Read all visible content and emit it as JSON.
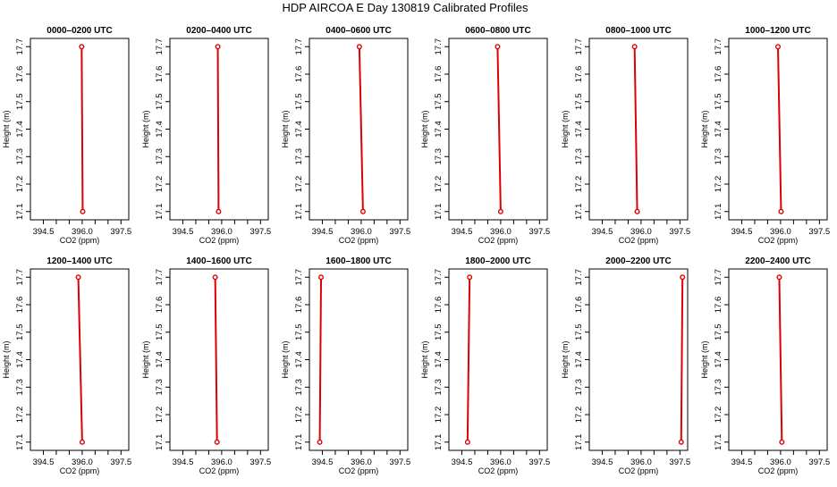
{
  "title": "HDP AIRCOA E  Day 130819  Calibrated Profiles",
  "colors": {
    "line": "#dd0000",
    "axis": "#000000",
    "background": "#ffffff"
  },
  "chart_data": {
    "type": "line",
    "xlabel": "CO2 (ppm)",
    "ylabel": "Height (m)",
    "xlim": [
      394.0,
      397.8
    ],
    "ylim": [
      17.07,
      17.73
    ],
    "xticks": [
      "394.5",
      "396.0",
      "397.5"
    ],
    "xtick_values": [
      394.5,
      396.0,
      397.5
    ],
    "yticks": [
      "17.1",
      "17.2",
      "17.3",
      "17.4",
      "17.5",
      "17.6",
      "17.7"
    ],
    "ytick_values": [
      17.1,
      17.2,
      17.3,
      17.4,
      17.5,
      17.6,
      17.7
    ],
    "minor_xtick_values": [
      395.0,
      395.5,
      396.5,
      397.0
    ],
    "panels": [
      {
        "title": "0000–0200 UTC",
        "x": [
          395.98,
          396.02
        ],
        "y": [
          17.7,
          17.1
        ]
      },
      {
        "title": "0200–0400 UTC",
        "x": [
          395.85,
          395.88
        ],
        "y": [
          17.7,
          17.1
        ]
      },
      {
        "title": "0400–0600 UTC",
        "x": [
          395.93,
          396.07
        ],
        "y": [
          17.7,
          17.1
        ]
      },
      {
        "title": "0600–0800 UTC",
        "x": [
          395.88,
          396.0
        ],
        "y": [
          17.7,
          17.1
        ]
      },
      {
        "title": "0800–1000 UTC",
        "x": [
          395.75,
          395.85
        ],
        "y": [
          17.7,
          17.1
        ]
      },
      {
        "title": "1000–1200 UTC",
        "x": [
          395.9,
          396.02
        ],
        "y": [
          17.7,
          17.1
        ]
      },
      {
        "title": "1200–1400 UTC",
        "x": [
          395.85,
          396.0
        ],
        "y": [
          17.7,
          17.1
        ]
      },
      {
        "title": "1400–1600 UTC",
        "x": [
          395.75,
          395.82
        ],
        "y": [
          17.7,
          17.1
        ]
      },
      {
        "title": "1600–1800 UTC",
        "x": [
          394.45,
          394.4
        ],
        "y": [
          17.7,
          17.1
        ]
      },
      {
        "title": "1800–2000 UTC",
        "x": [
          394.8,
          394.72
        ],
        "y": [
          17.7,
          17.1
        ]
      },
      {
        "title": "2000–2200 UTC",
        "x": [
          397.6,
          397.55
        ],
        "y": [
          17.7,
          17.1
        ]
      },
      {
        "title": "2200–2400 UTC",
        "x": [
          395.95,
          396.05
        ],
        "y": [
          17.7,
          17.1
        ]
      }
    ]
  }
}
